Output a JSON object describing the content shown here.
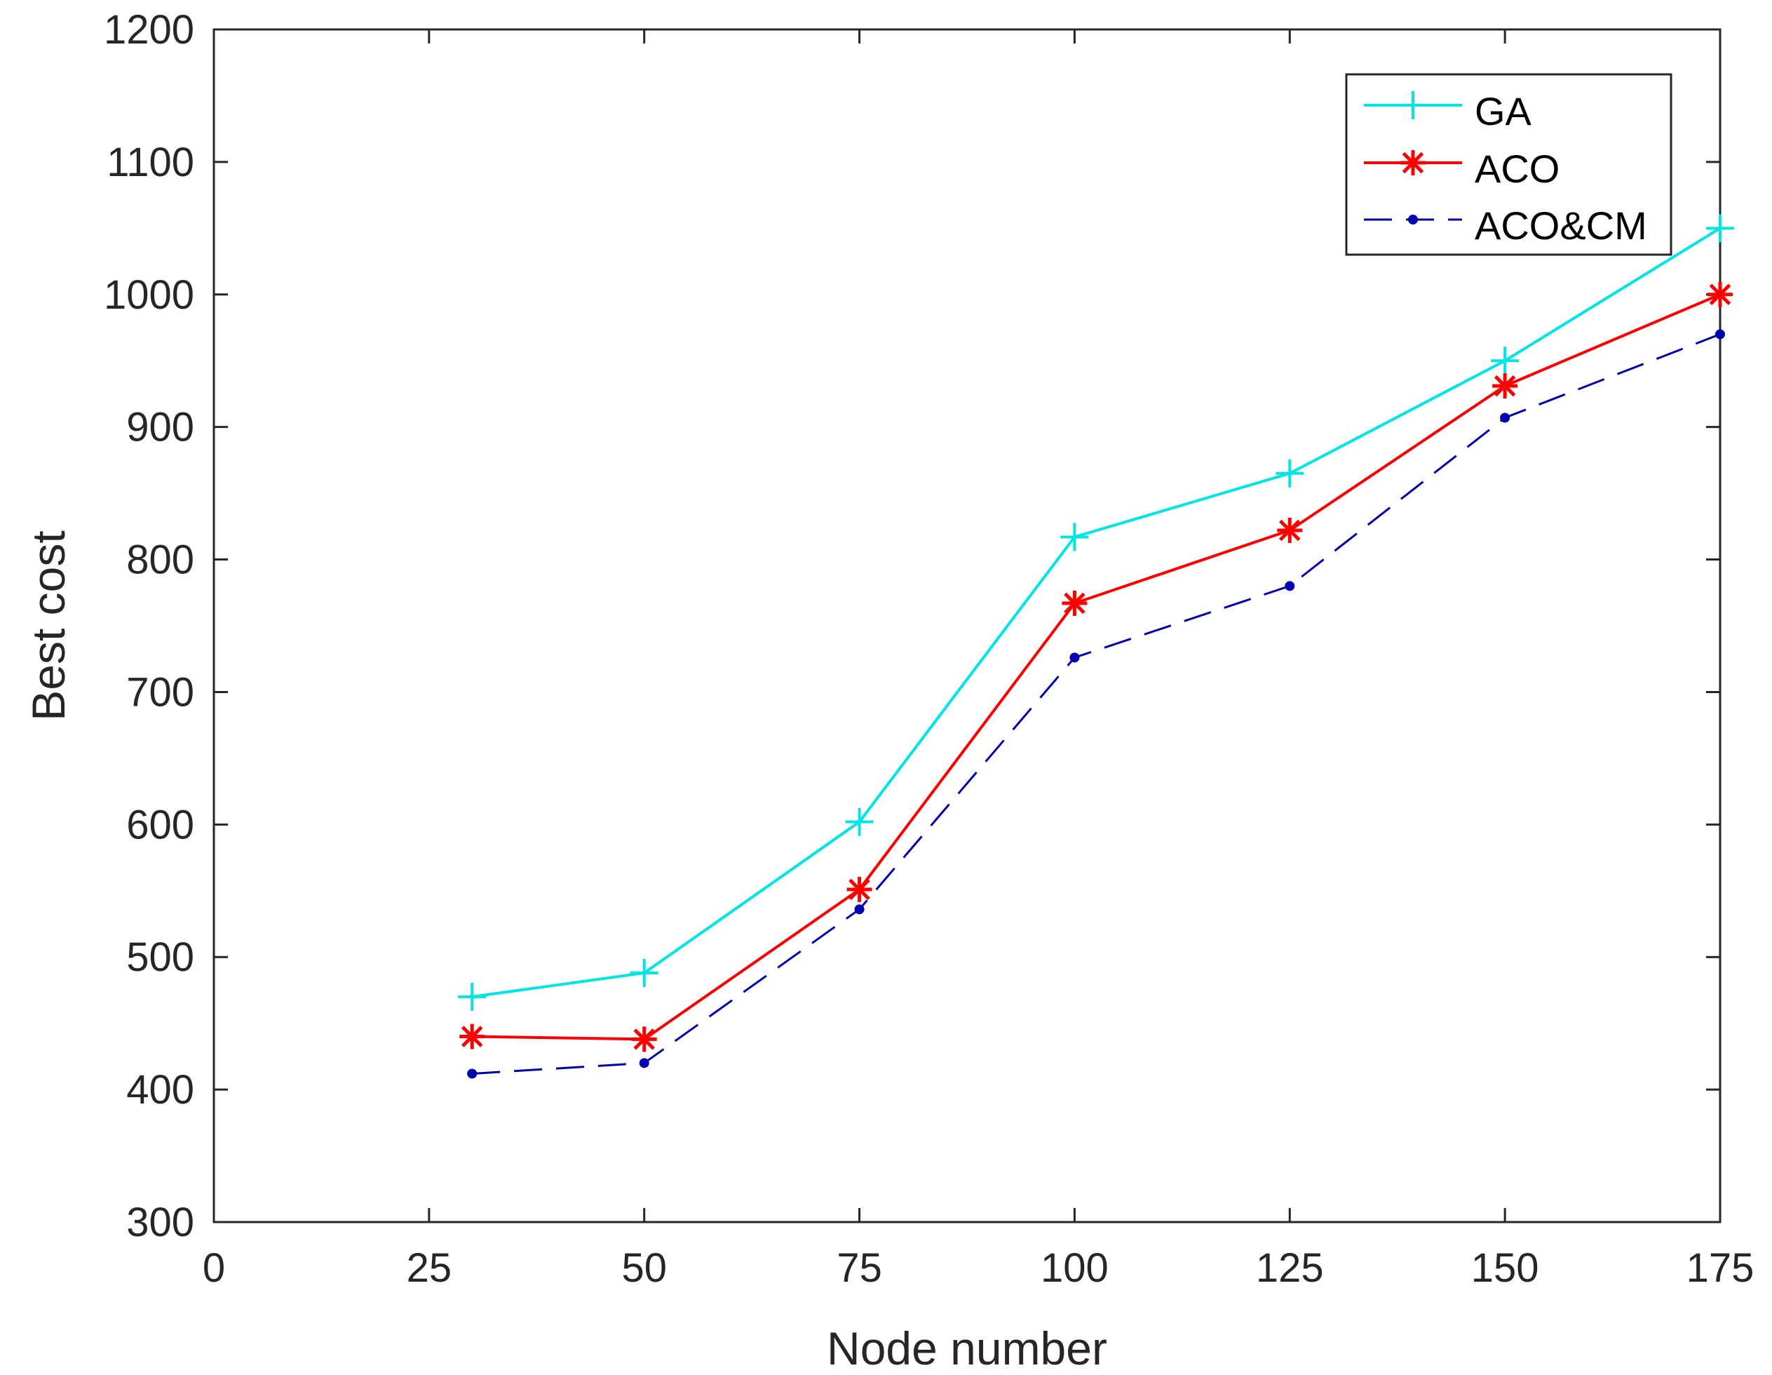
{
  "chart_data": {
    "type": "line",
    "title": "",
    "xlabel": "Node number",
    "ylabel": "Best cost",
    "xlim": [
      0,
      175
    ],
    "ylim": [
      300,
      1200
    ],
    "xticks": [
      0,
      25,
      50,
      75,
      100,
      125,
      150,
      175
    ],
    "yticks": [
      300,
      400,
      500,
      600,
      700,
      800,
      900,
      1000,
      1100,
      1200
    ],
    "xtick_labels": [
      "0",
      "25",
      "50",
      "75",
      "100",
      "125",
      "150",
      "175"
    ],
    "ytick_labels": [
      "300",
      "400",
      "500",
      "600",
      "700",
      "800",
      "900",
      "1000",
      "1100",
      "1200"
    ],
    "x": [
      30,
      50,
      75,
      100,
      125,
      150,
      175
    ],
    "grid": false,
    "legend_position": "top-right",
    "series": [
      {
        "name": "GA",
        "values": [
          470,
          488,
          602,
          817,
          865,
          950,
          1050
        ],
        "color": "#00e5e5",
        "marker": "plus",
        "line_style": "solid"
      },
      {
        "name": "ACO",
        "values": [
          440,
          438,
          551,
          767,
          822,
          931,
          1000
        ],
        "color": "#ff0000",
        "marker": "star",
        "line_style": "solid"
      },
      {
        "name": "ACO&CM",
        "values": [
          412,
          420,
          536,
          726,
          780,
          907,
          970
        ],
        "color": "#0000b0",
        "marker": "dot",
        "line_style": "dashed"
      }
    ]
  }
}
